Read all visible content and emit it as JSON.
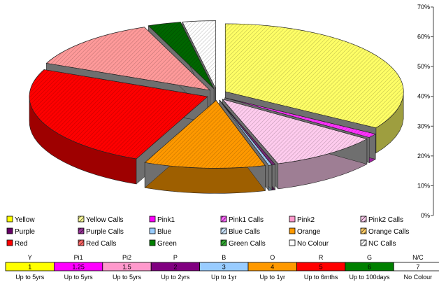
{
  "chart_data": {
    "type": "pie",
    "style": "exploded 3D pie with secondary percent axis",
    "y_axis": {
      "ticks": [
        "0%",
        "10%",
        "20%",
        "30%",
        "40%",
        "50%",
        "60%",
        "70%"
      ],
      "ylim": [
        0,
        70
      ],
      "position": "right"
    },
    "series": [
      {
        "name": "Yellow Calls",
        "color": "#ffff66",
        "value": 34.0
      },
      {
        "name": "Pink1 Calls",
        "color": "#ff33ff",
        "value": 1.0
      },
      {
        "name": "Pink2 Calls",
        "color": "#ffccee",
        "value": 10.0
      },
      {
        "name": "Purple Calls",
        "color": "#7a2a7a",
        "value": 0.3
      },
      {
        "name": "Blue Calls",
        "color": "#9fc9f5",
        "value": 0.3
      },
      {
        "name": "Orange Calls",
        "color": "#ff9900",
        "value": 11.0
      },
      {
        "name": "Red Calls",
        "color": "#ff0000",
        "value": 25.0
      },
      {
        "name": "Red Calls (hatched)",
        "color": "#ff9a9a",
        "value": 12.5
      },
      {
        "name": "Green Calls",
        "color": "#006600",
        "value": 3.0
      },
      {
        "name": "NC Calls",
        "color": "#ffffff",
        "value": 3.0
      }
    ],
    "legend": {
      "placement": "bottom",
      "items": [
        {
          "label": "Yellow",
          "color": "#ffff00",
          "hatched": false
        },
        {
          "label": "Yellow Calls",
          "color": "#ffff99",
          "hatched": true
        },
        {
          "label": "Pink1",
          "color": "#ff00ff",
          "hatched": false
        },
        {
          "label": "Pink1 Calls",
          "color": "#ff66ff",
          "hatched": true
        },
        {
          "label": "Pink2",
          "color": "#ff99cc",
          "hatched": false
        },
        {
          "label": "Pink2 Calls",
          "color": "#ffccee",
          "hatched": true
        },
        {
          "label": "Purple",
          "color": "#660066",
          "hatched": false
        },
        {
          "label": "Purple Calls",
          "color": "#993399",
          "hatched": true
        },
        {
          "label": "Blue",
          "color": "#99ccff",
          "hatched": false
        },
        {
          "label": "Blue Calls",
          "color": "#cce5ff",
          "hatched": true
        },
        {
          "label": "Orange",
          "color": "#ff9900",
          "hatched": false
        },
        {
          "label": "Orange Calls",
          "color": "#ffcc66",
          "hatched": true
        },
        {
          "label": "Red",
          "color": "#ff0000",
          "hatched": false
        },
        {
          "label": "Red Calls",
          "color": "#ff6666",
          "hatched": true
        },
        {
          "label": "Green",
          "color": "#008000",
          "hatched": false
        },
        {
          "label": "Green Calls",
          "color": "#33aa33",
          "hatched": true
        },
        {
          "label": "No Colour",
          "color": "#ffffff",
          "hatched": false
        },
        {
          "label": "NC Calls",
          "color": "#ffffff",
          "hatched": true
        }
      ]
    },
    "table": {
      "codes": [
        "Y",
        "Pi1",
        "Pi2",
        "P",
        "B",
        "O",
        "R",
        "G",
        "N/C"
      ],
      "values": [
        "1",
        "1.25",
        "1.5",
        "2",
        "3",
        "4",
        "5",
        "6",
        "7"
      ],
      "colors": [
        "#ffff00",
        "#ff00ff",
        "#ff99cc",
        "#800080",
        "#99ccff",
        "#ff9900",
        "#ff0000",
        "#008000",
        "#ffffff"
      ],
      "periods": [
        "Up to 5yrs",
        "Up to 5yrs",
        "Up to 5yrs",
        "Up to 2yrs",
        "Up to 1yr",
        "Up to 1yr",
        "Up to 6mths",
        "Up to 100days",
        "No Colour"
      ]
    }
  }
}
